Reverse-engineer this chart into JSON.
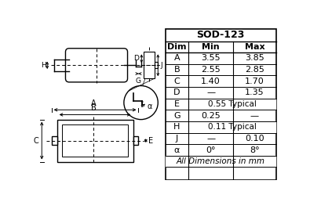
{
  "title": "SOD-123",
  "table_header": [
    "Dim",
    "Min",
    "Max"
  ],
  "table_rows": [
    [
      "A",
      "3.55",
      "3.85"
    ],
    [
      "B",
      "2.55",
      "2.85"
    ],
    [
      "C",
      "1.40",
      "1.70"
    ],
    [
      "D",
      "—",
      "1.35"
    ],
    [
      "E",
      "0.55 Typical",
      ""
    ],
    [
      "G",
      "0.25",
      "—"
    ],
    [
      "H",
      "0.11 Typical",
      ""
    ],
    [
      "J",
      "—",
      "0.10"
    ],
    [
      "α",
      "0°",
      "8°"
    ],
    [
      "All Dimensions in mm",
      "",
      ""
    ]
  ],
  "bg_color": "#ffffff"
}
